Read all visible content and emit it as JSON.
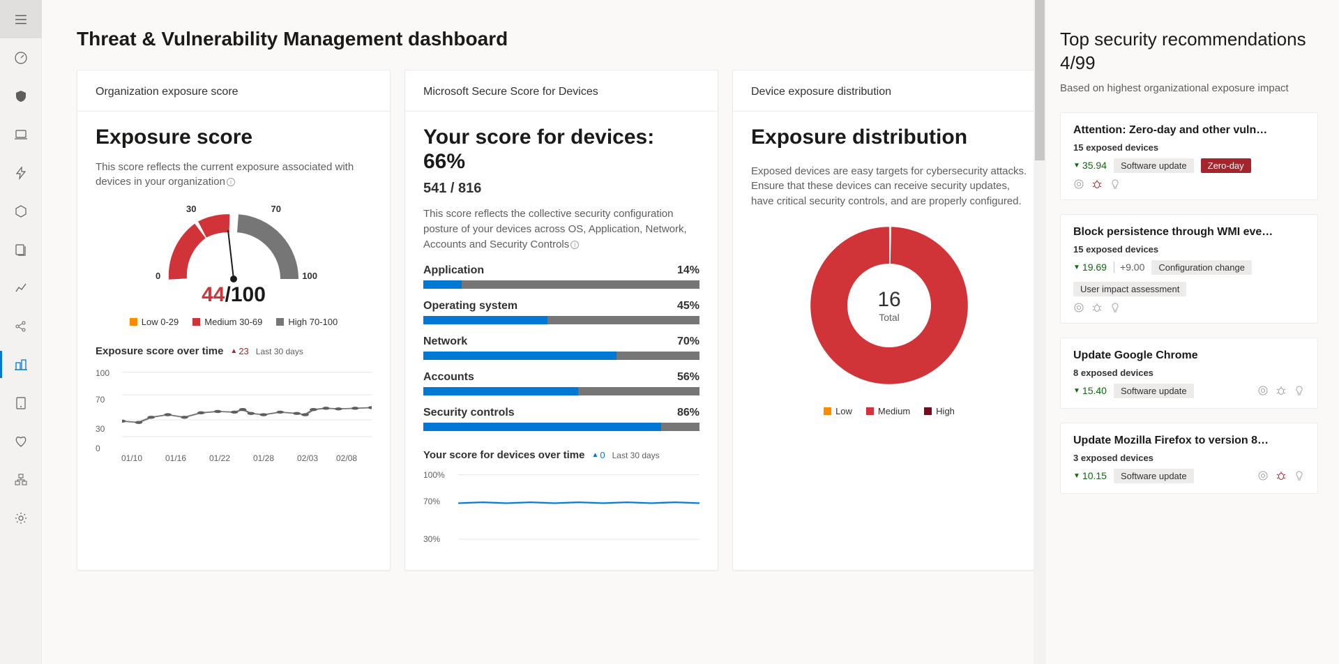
{
  "page": {
    "title": "Threat & Vulnerability Management dashboard"
  },
  "sidebar": {
    "icons": [
      "hamburger",
      "dashboard",
      "shield",
      "device",
      "quick",
      "hexagon",
      "stack",
      "analytics",
      "share",
      "tvm",
      "tablet",
      "health",
      "org",
      "settings"
    ],
    "active_index": 9
  },
  "exposure_card": {
    "header": "Organization exposure score",
    "heading": "Exposure score",
    "desc": "This score reflects the current exposure associated with devices in your organization",
    "gauge": {
      "value": 44,
      "max": 100,
      "ticks": {
        "t0": "0",
        "t30": "30",
        "t70": "70",
        "t100": "100"
      },
      "low_color": "#ff8c00",
      "med_color": "#d13438",
      "high_color": "#767676",
      "needle_angle_deg": -10
    },
    "legend": [
      {
        "color": "#ff8c00",
        "label": "Low 0-29"
      },
      {
        "color": "#d13438",
        "label": "Medium 30-69"
      },
      {
        "color": "#767676",
        "label": "High 70-100"
      }
    ],
    "over_time": {
      "title": "Exposure score over time",
      "delta_up": true,
      "delta": "23",
      "period": "Last 30 days",
      "yticks": [
        "100",
        "70",
        "30",
        "0"
      ],
      "xticks": [
        "01/10",
        "01/16",
        "01/22",
        "01/28",
        "02/03",
        "02/08"
      ],
      "points": [
        [
          0,
          24
        ],
        [
          8,
          22
        ],
        [
          14,
          30
        ],
        [
          22,
          34
        ],
        [
          30,
          30
        ],
        [
          38,
          37
        ],
        [
          46,
          39
        ],
        [
          54,
          38
        ],
        [
          58,
          42
        ],
        [
          62,
          36
        ],
        [
          68,
          34
        ],
        [
          76,
          38
        ],
        [
          84,
          36
        ],
        [
          88,
          34
        ],
        [
          92,
          42
        ],
        [
          98,
          44
        ],
        [
          104,
          43
        ],
        [
          112,
          44
        ],
        [
          120,
          45
        ]
      ],
      "line_color": "#767676",
      "marker_color": "#605e5c"
    }
  },
  "secure_card": {
    "header": "Microsoft Secure Score for Devices",
    "heading": "Your score for devices: 66%",
    "fraction": "541 / 816",
    "desc": "This score reflects the collective security configuration posture of your devices across OS, Application, Network, Accounts and Security Controls",
    "metrics": [
      {
        "label": "Application",
        "pct": 14
      },
      {
        "label": "Operating system",
        "pct": 45
      },
      {
        "label": "Network",
        "pct": 70
      },
      {
        "label": "Accounts",
        "pct": 56
      },
      {
        "label": "Security controls",
        "pct": 86
      }
    ],
    "bar_fill": "#0078d4",
    "bar_track": "#767676",
    "over_time": {
      "title": "Your score for devices over time",
      "delta_up": true,
      "delta": "0",
      "delta_color": "#0078d4",
      "period": "Last 30 days",
      "yticks": [
        "100%",
        "70%",
        "30%"
      ],
      "line_y": 70,
      "line_color": "#0078d4"
    }
  },
  "distribution_card": {
    "header": "Device exposure distribution",
    "heading": "Exposure distribution",
    "desc": "Exposed devices are easy targets for cybersecurity attacks. Ensure that these devices can receive security updates, have critical security controls, and are properly configured.",
    "donut": {
      "total": "16",
      "total_label": "Total",
      "segments": [
        {
          "color": "#ff8c00",
          "fraction": 0.0
        },
        {
          "color": "#d13438",
          "fraction": 0.995
        },
        {
          "color": "#a4262c",
          "fraction": 0.005
        }
      ]
    },
    "legend": [
      {
        "color": "#ff8c00",
        "label": "Low"
      },
      {
        "color": "#d13438",
        "label": "Medium"
      },
      {
        "color": "#750b1c",
        "label": "High"
      }
    ]
  },
  "recommendations": {
    "title": "Top security recommendations 4/99",
    "sub": "Based on highest organizational exposure impact",
    "items": [
      {
        "title": "Attention: Zero-day and other vuln…",
        "exposed": "15 exposed devices",
        "score": "35.94",
        "score_down": true,
        "tags": [
          {
            "label": "Software update",
            "danger": false
          },
          {
            "label": "Zero-day",
            "danger": true
          }
        ],
        "plus": null,
        "icons_below": true,
        "show_bug": true
      },
      {
        "title": "Block persistence through WMI eve…",
        "exposed": "15 exposed devices",
        "score": "19.69",
        "score_down": true,
        "plus": "+9.00",
        "tags": [
          {
            "label": "Configuration change",
            "danger": false
          },
          {
            "label": "User impact assessment",
            "danger": false
          }
        ],
        "icons_below": true,
        "show_bug": false
      },
      {
        "title": "Update Google Chrome",
        "exposed": "8 exposed devices",
        "score": "15.40",
        "score_down": true,
        "tags": [
          {
            "label": "Software update",
            "danger": false
          }
        ],
        "plus": null,
        "icons_below": false,
        "show_bug": false
      },
      {
        "title": "Update Mozilla Firefox to version 8…",
        "exposed": "3 exposed devices",
        "score": "10.15",
        "score_down": true,
        "tags": [
          {
            "label": "Software update",
            "danger": false
          }
        ],
        "plus": null,
        "icons_below": false,
        "show_bug": true
      }
    ]
  }
}
